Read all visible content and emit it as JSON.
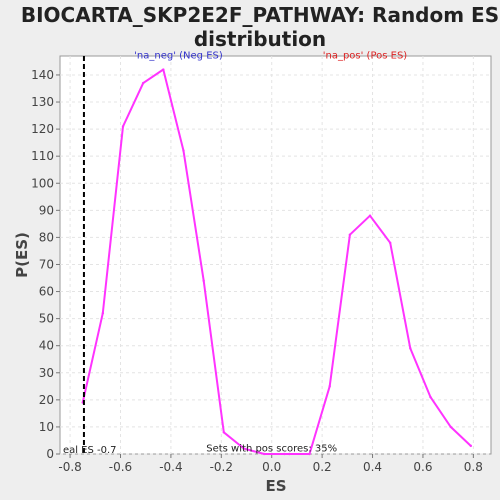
{
  "chart_data": {
    "type": "line",
    "title_line1": "BIOCARTA_SKP2E2F_PATHWAY: Random ES",
    "title_line2": "distribution",
    "xlabel": "ES",
    "ylabel": "P(ES)",
    "xlim": [
      -0.84,
      0.87
    ],
    "ylim": [
      0,
      147
    ],
    "xticks": [
      -0.8,
      -0.6,
      -0.4,
      -0.2,
      0.0,
      0.2,
      0.4,
      0.6,
      0.8
    ],
    "xtick_labels": [
      "-0.8",
      "-0.6",
      "-0.4",
      "-0.2",
      "0.0",
      "0.2",
      "0.4",
      "0.6",
      "0.8"
    ],
    "yticks": [
      0,
      10,
      20,
      30,
      40,
      50,
      60,
      70,
      80,
      90,
      100,
      110,
      120,
      130,
      140
    ],
    "ytick_labels": [
      "0",
      "10",
      "20",
      "30",
      "40",
      "50",
      "60",
      "70",
      "80",
      "90",
      "100",
      "110",
      "120",
      "130",
      "140"
    ],
    "grid": true,
    "series": [
      {
        "color": "#ff33ff",
        "x": [
          -0.75,
          -0.67,
          -0.59,
          -0.51,
          -0.43,
          -0.35,
          -0.27,
          -0.19,
          -0.11,
          -0.03,
          0.05,
          0.07,
          0.15,
          0.23,
          0.31,
          0.39,
          0.47,
          0.55,
          0.63,
          0.71,
          0.79
        ],
        "y": [
          19,
          52,
          121,
          137,
          142,
          112,
          64,
          8,
          2,
          0,
          0,
          0,
          0,
          25,
          81,
          88,
          78,
          39,
          21,
          10,
          3
        ]
      }
    ],
    "real_es_line": {
      "x": -0.745,
      "color": "#000000",
      "label": "eal ES -0.7"
    },
    "annotations": [
      {
        "text": "'na_neg' (Neg ES)",
        "color": "#3333cc",
        "x": -0.37,
        "y": 146
      },
      {
        "text": "'na_pos' (Pos ES)",
        "color": "#dd2222",
        "x": 0.37,
        "y": 146
      },
      {
        "text": "Sets with pos scores: 35%",
        "color": "#222222",
        "x": 0.0,
        "y": 1
      }
    ]
  }
}
